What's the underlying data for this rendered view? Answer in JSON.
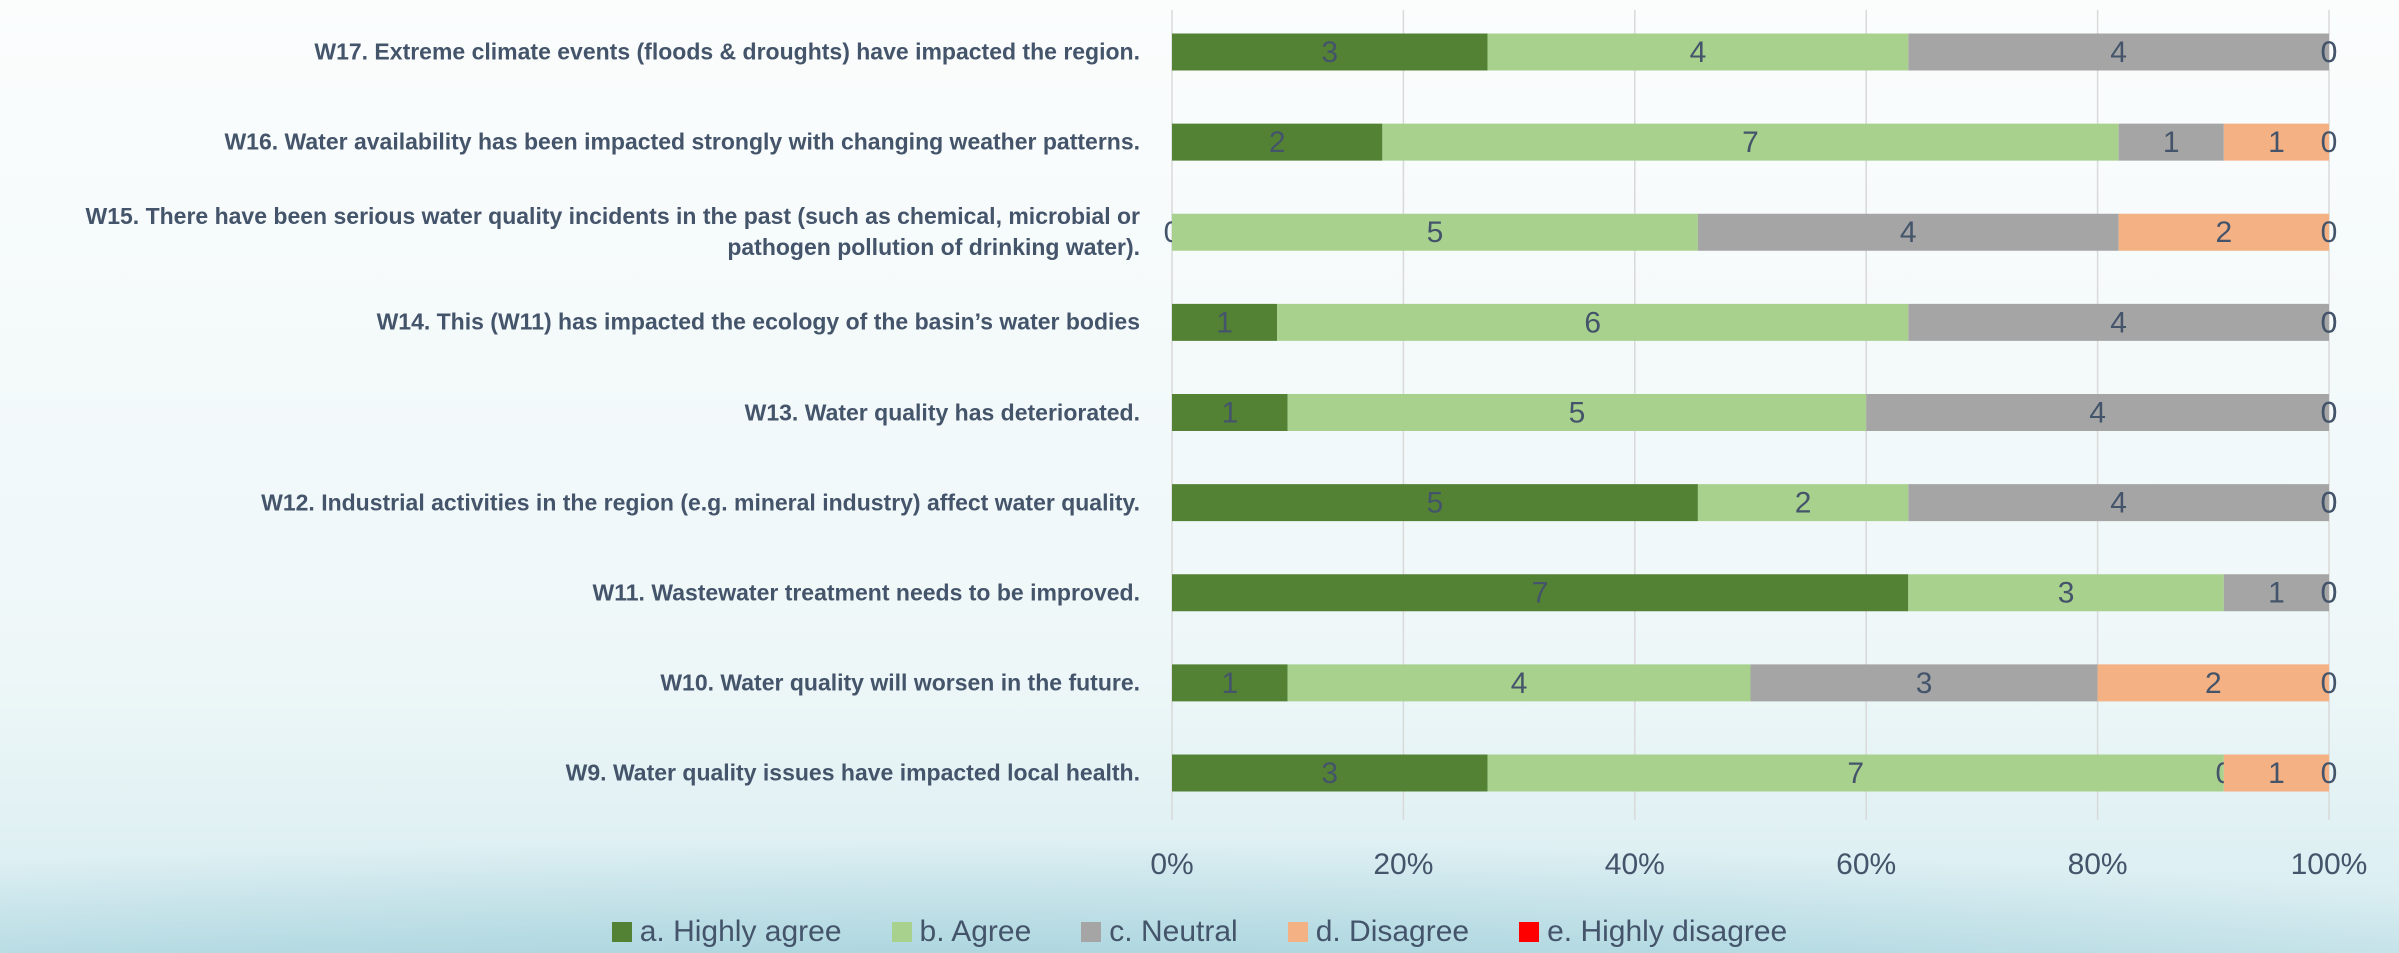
{
  "chart_data": {
    "type": "stacked_percent_barh",
    "categories": [
      "W17. Extreme climate events (floods & droughts) have impacted the region.",
      "W16. Water availability has been impacted strongly with changing weather patterns.",
      "W15. There have been serious water quality incidents in the past (such as chemical, microbial or pathogen pollution of drinking water).",
      "W14. This (W11) has impacted the ecology of the basin’s water bodies",
      "W13. Water quality has deteriorated.",
      "W12. Industrial activities in the region (e.g. mineral industry) affect water quality.",
      "W11. Wastewater treatment needs to be improved.",
      "W10. Water quality will worsen in the future.",
      "W9. Water quality issues have impacted local health."
    ],
    "series": [
      {
        "name": "a. Highly agree",
        "color": "#548235",
        "values": [
          3,
          2,
          0,
          1,
          1,
          5,
          7,
          1,
          3
        ]
      },
      {
        "name": "b. Agree",
        "color": "#a9d18e",
        "values": [
          4,
          7,
          5,
          6,
          5,
          2,
          3,
          4,
          7
        ]
      },
      {
        "name": "c. Neutral",
        "color": "#a5a5a5",
        "values": [
          4,
          1,
          4,
          4,
          4,
          4,
          1,
          3,
          0
        ]
      },
      {
        "name": "d. Disagree",
        "color": "#f4b183",
        "values": [
          0,
          1,
          2,
          0,
          0,
          0,
          0,
          2,
          1
        ]
      },
      {
        "name": "e. Highly disagree",
        "color": "#ff0000",
        "values": [
          0,
          0,
          0,
          0,
          0,
          0,
          0,
          0,
          0
        ]
      }
    ],
    "xlim": [
      0,
      100
    ],
    "xticks": [
      {
        "value": 0,
        "label": "0%"
      },
      {
        "value": 20,
        "label": "20%"
      },
      {
        "value": 40,
        "label": "40%"
      },
      {
        "value": 60,
        "label": "60%"
      },
      {
        "value": 80,
        "label": "80%"
      },
      {
        "value": 100,
        "label": "100%"
      }
    ],
    "grid": true,
    "legend": "bottom"
  }
}
